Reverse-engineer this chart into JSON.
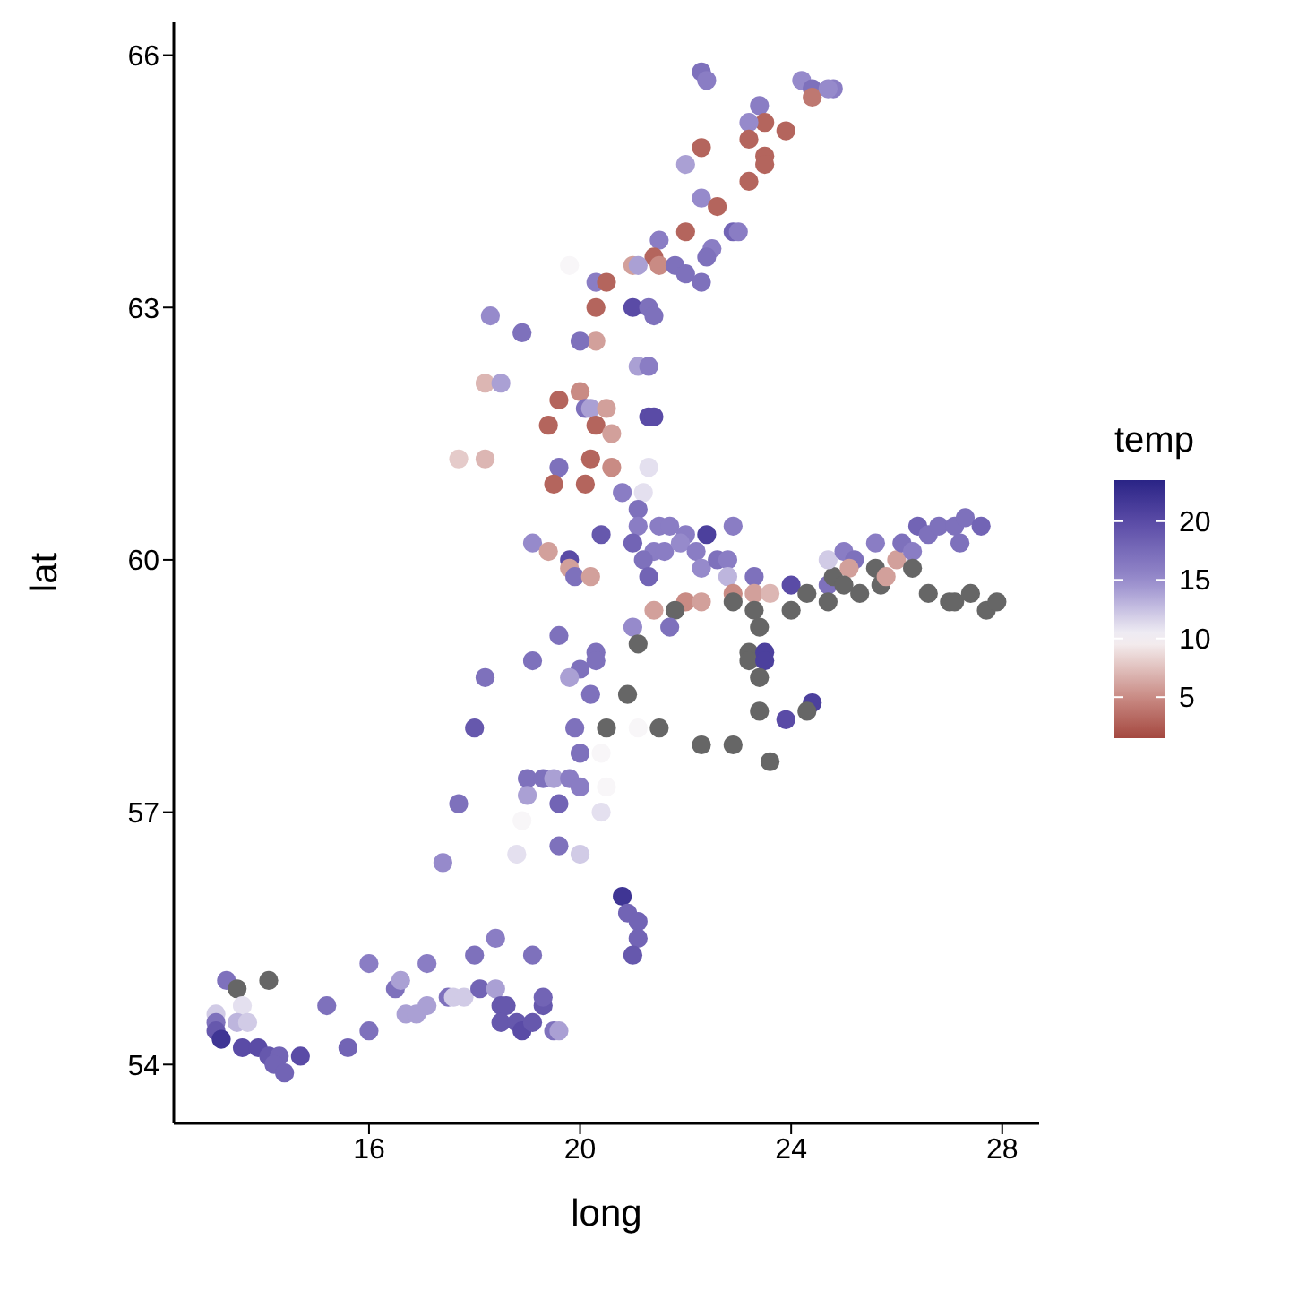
{
  "chart_data": {
    "type": "scatter",
    "xlabel": "long",
    "ylabel": "lat",
    "clabel": "temp",
    "xlim": [
      12.3,
      28.7
    ],
    "xticks": [
      16,
      20,
      24,
      28
    ],
    "ylim": [
      53.3,
      66.4
    ],
    "yticks": [
      54,
      57,
      60,
      63,
      66
    ],
    "clim": [
      1.5,
      23.5
    ],
    "cticks": [
      5,
      10,
      15,
      20
    ],
    "grid": false,
    "marker": "circle",
    "series": [
      {
        "x": [
          22.3,
          22.4,
          24.2,
          24.4,
          24.4,
          24.8,
          24.7,
          23.4,
          23.5,
          23.2,
          23.2,
          23.9,
          22.3,
          23.5,
          23.5,
          22.0,
          23.2,
          22.3,
          22.6,
          22.0,
          22.9,
          23.0,
          22.5,
          22.4,
          21.5,
          21.4,
          21.5,
          21.0,
          21.1,
          21.8,
          22.0,
          22.3,
          20.3,
          20.5,
          19.8,
          20.3,
          21.0,
          21.3,
          21.4,
          20.3,
          18.3,
          18.9,
          20.0,
          21.1,
          21.3,
          18.2,
          18.5,
          19.6,
          20.0,
          20.1,
          20.2,
          19.4,
          20.3,
          20.5,
          20.6,
          21.3,
          21.4,
          17.7,
          18.2,
          19.6,
          20.2,
          19.5,
          20.1,
          20.6,
          21.3,
          21.2,
          20.8,
          19.1,
          19.4,
          19.8,
          19.8,
          19.9,
          20.2,
          20.4,
          21.1,
          21.1,
          21.5,
          21.7,
          22.0,
          22.4,
          22.9,
          21.0,
          21.4,
          21.6,
          21.2,
          21.3,
          21.9,
          22.2,
          22.3,
          22.6,
          22.8,
          22.8,
          23.3,
          22.9,
          23.3,
          23.6,
          22.0,
          22.3,
          21.4,
          21.8,
          21.0,
          21.7,
          21.1,
          22.9,
          23.3,
          23.4,
          24.0,
          24.0,
          24.3,
          24.7,
          24.8,
          24.7,
          25.0,
          25.2,
          25.1,
          25.0,
          24.7,
          25.3,
          25.6,
          25.6,
          25.7,
          25.8,
          26.0,
          26.1,
          26.3,
          26.3,
          26.4,
          26.6,
          26.8,
          27.1,
          27.3,
          27.6,
          27.2,
          26.6,
          27.0,
          27.1,
          27.4,
          27.7,
          27.9,
          23.2,
          23.2,
          23.5,
          23.5,
          23.4,
          20.9,
          23.4,
          24.4,
          24.3,
          23.9,
          20.5,
          21.1,
          21.5,
          22.3,
          22.9,
          23.6,
          20.4,
          20.5,
          20.4,
          20.8,
          20.9,
          21.1,
          21.1,
          21.0,
          19.6,
          19.1,
          18.2,
          20.3,
          20.0,
          19.8,
          20.3,
          20.2,
          18.0,
          19.9,
          20.0,
          19.0,
          19.3,
          19.5,
          19.8,
          20.0,
          19.0,
          17.7,
          19.6,
          18.9,
          18.8,
          19.6,
          20.0,
          17.4,
          18.4,
          19.1,
          18.0,
          16.0,
          17.1,
          13.3,
          13.5,
          14.1,
          13.1,
          13.6,
          13.5,
          13.7,
          13.1,
          13.1,
          13.2,
          13.6,
          13.9,
          14.1,
          14.3,
          14.2,
          14.4,
          14.7,
          15.2,
          15.6,
          16.0,
          16.5,
          16.6,
          16.7,
          16.9,
          17.1,
          17.5,
          17.6,
          17.8,
          18.1,
          18.4,
          18.5,
          18.6,
          18.5,
          18.8,
          18.9,
          19.1,
          19.3,
          19.3,
          19.5,
          19.6
        ],
        "values": [
          65.8,
          65.7,
          65.7,
          65.6,
          65.5,
          65.6,
          65.6,
          65.4,
          65.2,
          65.2,
          65.0,
          65.1,
          64.9,
          64.8,
          64.7,
          64.7,
          64.5,
          64.3,
          64.2,
          63.9,
          63.9,
          63.9,
          63.7,
          63.6,
          63.8,
          63.6,
          63.5,
          63.5,
          63.5,
          63.5,
          63.4,
          63.3,
          63.3,
          63.3,
          63.5,
          63.0,
          63.0,
          63.0,
          62.9,
          62.6,
          62.9,
          62.7,
          62.6,
          62.3,
          62.3,
          62.1,
          62.1,
          61.9,
          62.0,
          61.8,
          61.8,
          61.6,
          61.6,
          61.8,
          61.5,
          61.7,
          61.7,
          61.2,
          61.2,
          61.1,
          61.2,
          60.9,
          60.9,
          61.1,
          61.1,
          60.8,
          60.8,
          60.2,
          60.1,
          60.0,
          59.9,
          59.8,
          59.8,
          60.3,
          60.6,
          60.4,
          60.4,
          60.4,
          60.3,
          60.3,
          60.4,
          60.2,
          60.1,
          60.1,
          60.0,
          59.8,
          60.2,
          60.1,
          59.9,
          60.0,
          60.0,
          59.8,
          59.8,
          59.6,
          59.6,
          59.6,
          59.5,
          59.5,
          59.4,
          59.4,
          59.2,
          59.2,
          59.0,
          59.5,
          59.4,
          59.2,
          59.7,
          59.4,
          59.6,
          59.7,
          59.8,
          60.0,
          60.1,
          60.0,
          59.9,
          59.7,
          59.5,
          59.6,
          60.2,
          59.9,
          59.7,
          59.8,
          60.0,
          60.2,
          60.1,
          59.9,
          60.4,
          60.3,
          60.4,
          60.4,
          60.5,
          60.4,
          60.2,
          59.6,
          59.5,
          59.5,
          59.6,
          59.4,
          59.5,
          58.9,
          58.8,
          58.9,
          58.8,
          58.6,
          58.4,
          58.2,
          58.3,
          58.2,
          58.1,
          58.0,
          58.0,
          58.0,
          57.8,
          57.8,
          57.6,
          57.7,
          57.3,
          57.0,
          56.0,
          55.8,
          55.7,
          55.5,
          55.3,
          59.1,
          58.8,
          58.6,
          58.9,
          58.7,
          58.6,
          58.8,
          58.4,
          58.0,
          58.0,
          57.7,
          57.4,
          57.4,
          57.4,
          57.4,
          57.3,
          57.2,
          57.1,
          57.1,
          56.9,
          56.5,
          56.6,
          56.5,
          56.4,
          55.5,
          55.3,
          55.3,
          55.2,
          55.2,
          55.0,
          54.9,
          55.0,
          54.6,
          54.7,
          54.5,
          54.5,
          54.5,
          54.4,
          54.3,
          54.2,
          54.2,
          54.1,
          54.1,
          54.0,
          53.9,
          54.1,
          54.7,
          54.2,
          54.4,
          54.9,
          55.0,
          54.6,
          54.6,
          54.7,
          54.8,
          54.8,
          54.8,
          54.9,
          54.9,
          54.7,
          54.7,
          54.5,
          54.5,
          54.4,
          54.5,
          54.7,
          54.8,
          54.4,
          54.4
        ],
        "cvalues": [
          17,
          16,
          15,
          17,
          4,
          16,
          15,
          16,
          3,
          15,
          3,
          3,
          3,
          3,
          3,
          14,
          3,
          15,
          3,
          3,
          18,
          16,
          16,
          17,
          16,
          3,
          5,
          6,
          14,
          17,
          17,
          17,
          16,
          3,
          10,
          3,
          20,
          17,
          17,
          6,
          15,
          17,
          17,
          14,
          16,
          7,
          14,
          3,
          5,
          17,
          14,
          3,
          3,
          6,
          6,
          20,
          20,
          8,
          7,
          17,
          3,
          3,
          3,
          5,
          11,
          11,
          16,
          15,
          6,
          20,
          6,
          17,
          6,
          19,
          17,
          16,
          16,
          16,
          16,
          21,
          16,
          18,
          16,
          16,
          17,
          18,
          15,
          16,
          15,
          17,
          16,
          13,
          17,
          5,
          6,
          7,
          5,
          6,
          6,
          null,
          15,
          17,
          null,
          null,
          null,
          null,
          20,
          null,
          null,
          17,
          null,
          12,
          16,
          17,
          6,
          null,
          null,
          null,
          16,
          null,
          null,
          6,
          6,
          17,
          16,
          null,
          18,
          17,
          17,
          17,
          17,
          18,
          17,
          null,
          null,
          null,
          null,
          null,
          null,
          null,
          null,
          21,
          21,
          null,
          null,
          null,
          21,
          null,
          20,
          null,
          10,
          null,
          null,
          null,
          null,
          10,
          10,
          11,
          22,
          18,
          18,
          18,
          19,
          17,
          17,
          17,
          17,
          17,
          14,
          17,
          17,
          19,
          17,
          17,
          17,
          17,
          14,
          16,
          16,
          14,
          17,
          18,
          10,
          11,
          17,
          12,
          15,
          16,
          17,
          17,
          16,
          16,
          17,
          null,
          null,
          12,
          11,
          13,
          12,
          17,
          19,
          22,
          20,
          20,
          19,
          18,
          18,
          18,
          20,
          17,
          18,
          17,
          17,
          14,
          14,
          14,
          14,
          17,
          12,
          12,
          18,
          14,
          19,
          19,
          19,
          19,
          20,
          19,
          19,
          18,
          17,
          14
        ]
      }
    ]
  }
}
